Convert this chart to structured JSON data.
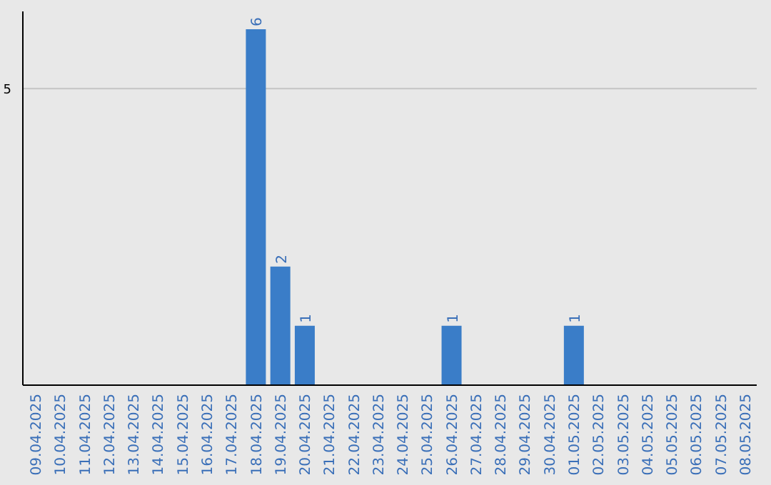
{
  "chart_data": {
    "type": "bar",
    "categories": [
      "09.04.2025",
      "10.04.2025",
      "11.04.2025",
      "12.04.2025",
      "13.04.2025",
      "14.04.2025",
      "15.04.2025",
      "16.04.2025",
      "17.04.2025",
      "18.04.2025",
      "19.04.2025",
      "20.04.2025",
      "21.04.2025",
      "22.04.2025",
      "23.04.2025",
      "24.04.2025",
      "25.04.2025",
      "26.04.2025",
      "27.04.2025",
      "28.04.2025",
      "29.04.2025",
      "30.04.2025",
      "01.05.2025",
      "02.05.2025",
      "03.05.2025",
      "04.05.2025",
      "05.05.2025",
      "06.05.2025",
      "07.05.2025",
      "08.05.2025"
    ],
    "values": [
      null,
      null,
      null,
      null,
      null,
      null,
      null,
      null,
      null,
      6,
      2,
      1,
      null,
      null,
      null,
      null,
      null,
      1,
      null,
      null,
      null,
      null,
      1,
      null,
      null,
      null,
      null,
      null,
      null,
      null
    ],
    "color": "#3a7dc8",
    "ylim": [
      0,
      6.3
    ],
    "yticks": [
      5
    ],
    "grid": "y",
    "data_labels": true
  }
}
